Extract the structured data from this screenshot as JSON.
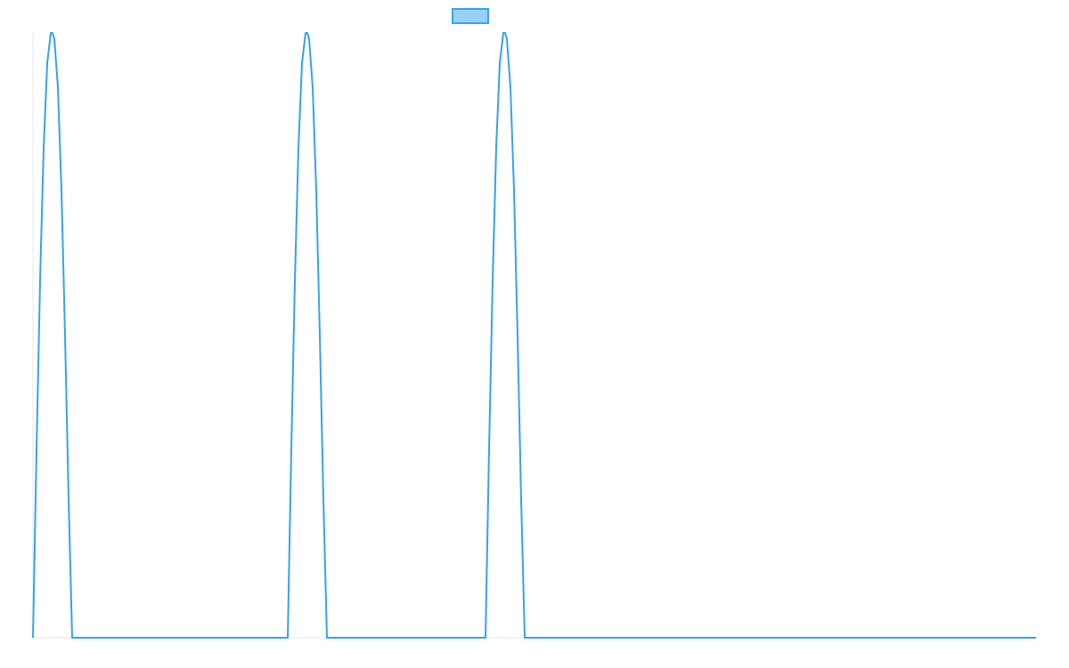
{
  "chart_data": {
    "type": "line",
    "title": "",
    "xlabel": "",
    "ylabel": "",
    "xlim": [
      0,
      1126
    ],
    "ylim": [
      0,
      1
    ],
    "grid": false,
    "legend": "top",
    "legend_entries": [
      ""
    ],
    "colors": {
      "series": "#36a2eb",
      "series_fill": "#9ad0f5",
      "axis": "#e6e6e6"
    },
    "series": [
      {
        "name": "",
        "x": [
          0,
          4,
          8,
          12,
          16,
          20,
          22,
          24,
          28,
          32,
          36,
          40,
          44,
          286,
          290,
          294,
          298,
          302,
          306,
          308,
          310,
          314,
          318,
          322,
          326,
          330,
          508,
          512,
          516,
          520,
          524,
          528,
          530,
          532,
          536,
          540,
          544,
          548,
          552,
          1126
        ],
        "values": [
          0,
          0.31,
          0.59,
          0.81,
          0.95,
          1.0,
          1.0,
          0.99,
          0.91,
          0.74,
          0.5,
          0.23,
          0,
          0,
          0.31,
          0.59,
          0.81,
          0.95,
          1.0,
          1.0,
          0.99,
          0.91,
          0.74,
          0.5,
          0.23,
          0,
          0,
          0.31,
          0.59,
          0.81,
          0.95,
          1.0,
          1.0,
          0.99,
          0.91,
          0.74,
          0.5,
          0.23,
          0,
          0
        ]
      }
    ]
  }
}
